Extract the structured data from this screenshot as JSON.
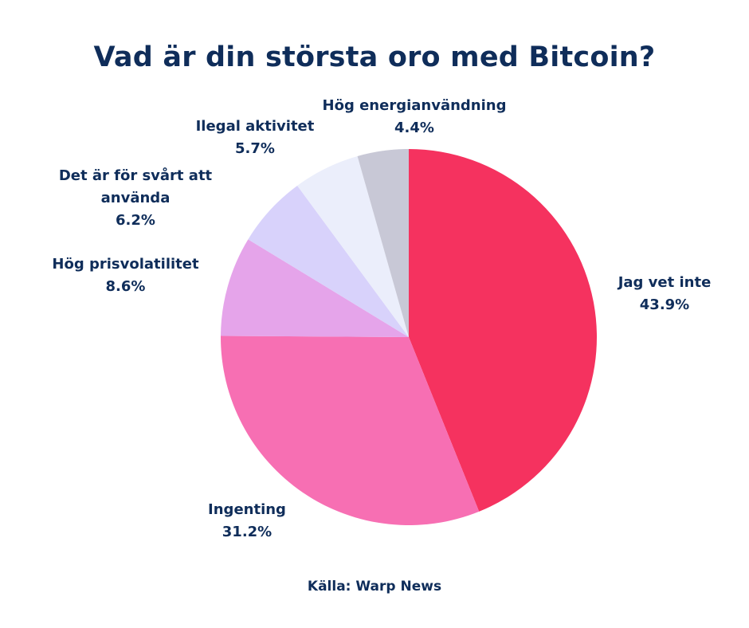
{
  "chart_data": {
    "type": "pie",
    "title": "Vad är din största oro med Bitcoin?",
    "start": "12 o'clock",
    "direction": "clockwise",
    "slices": [
      {
        "label": "Jag vet inte",
        "value": 43.9,
        "pct_label": "43.9%",
        "color": "#f5325f"
      },
      {
        "label": "Ingenting",
        "value": 31.2,
        "pct_label": "31.2%",
        "color": "#f76fb3"
      },
      {
        "label": "Hög prisvolatilitet",
        "value": 8.6,
        "pct_label": "8.6%",
        "color": "#e5a4ea"
      },
      {
        "label": "Det är för svårt att använda",
        "value": 6.2,
        "pct_label": "6.2%",
        "color": "#d8d2fb"
      },
      {
        "label": "Ilegal aktivitet",
        "value": 5.7,
        "pct_label": "5.7%",
        "color": "#ebeefb"
      },
      {
        "label": "Hög energianvändning",
        "value": 4.4,
        "pct_label": "4.4%",
        "color": "#c8c8d6"
      }
    ]
  },
  "source": {
    "prefix": "Källa:",
    "name": "Warp News"
  },
  "colors": {
    "text": "#0f2d5a",
    "background": "#ffffff"
  }
}
